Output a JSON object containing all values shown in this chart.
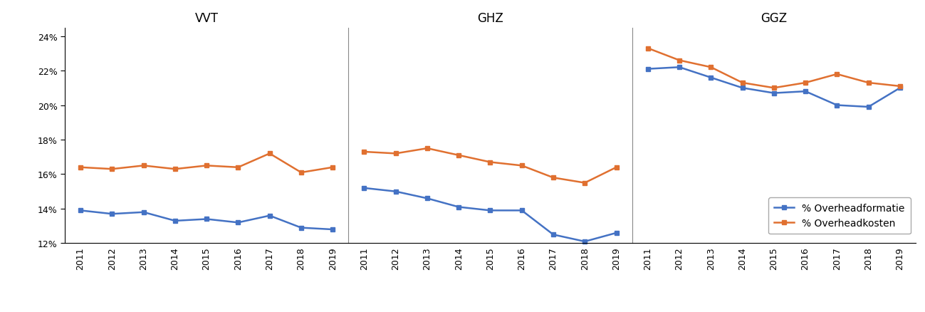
{
  "years": [
    2011,
    2012,
    2013,
    2014,
    2015,
    2016,
    2017,
    2018,
    2019
  ],
  "panels": [
    {
      "title": "VVT",
      "blue": [
        13.9,
        13.7,
        13.8,
        13.3,
        13.4,
        13.2,
        13.6,
        12.9,
        12.8
      ],
      "orange": [
        16.4,
        16.3,
        16.5,
        16.3,
        16.5,
        16.4,
        17.2,
        16.1,
        16.4
      ]
    },
    {
      "title": "GHZ",
      "blue": [
        15.2,
        15.0,
        14.6,
        14.1,
        13.9,
        13.9,
        12.5,
        12.1,
        12.6
      ],
      "orange": [
        17.3,
        17.2,
        17.5,
        17.1,
        16.7,
        16.5,
        15.8,
        15.5,
        16.4
      ]
    },
    {
      "title": "GGZ",
      "blue": [
        22.1,
        22.2,
        21.6,
        21.0,
        20.7,
        20.8,
        20.0,
        19.9,
        21.0
      ],
      "orange": [
        23.3,
        22.6,
        22.2,
        21.3,
        21.0,
        21.3,
        21.8,
        21.3,
        21.1
      ]
    }
  ],
  "ylim": [
    0.12,
    0.245
  ],
  "yticks": [
    0.12,
    0.14,
    0.16,
    0.18,
    0.2,
    0.22,
    0.24
  ],
  "ytick_labels": [
    "12%",
    "14%",
    "16%",
    "18%",
    "20%",
    "22%",
    "24%"
  ],
  "blue_color": "#4472C4",
  "orange_color": "#E07030",
  "legend_labels": [
    "% Overheadformatie",
    "% Overheadkosten"
  ],
  "marker": "s",
  "markersize": 5,
  "linewidth": 1.8,
  "title_fontsize": 12,
  "tick_fontsize": 9,
  "legend_fontsize": 10,
  "background_color": "#ffffff"
}
